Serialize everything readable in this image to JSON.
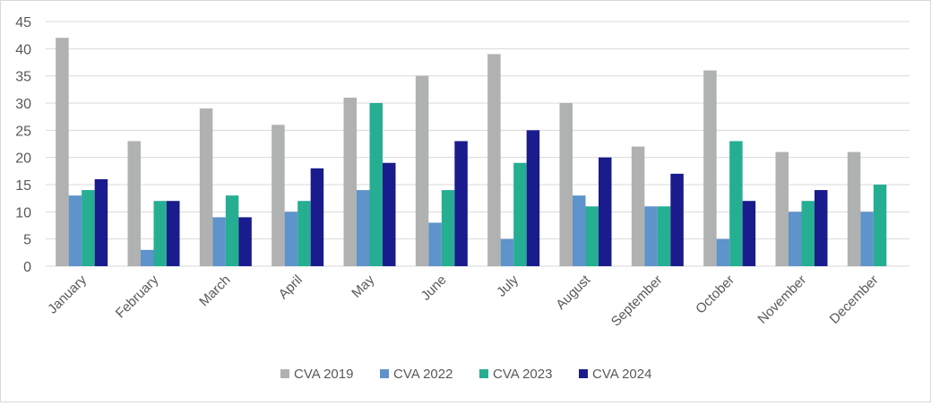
{
  "chart_data": {
    "type": "bar",
    "title": "",
    "xlabel": "",
    "ylabel": "",
    "ylim": [
      0,
      45
    ],
    "yticks": [
      0,
      5,
      10,
      15,
      20,
      25,
      30,
      35,
      40,
      45
    ],
    "grid": true,
    "legend_position": "bottom",
    "categories": [
      "January",
      "February",
      "March",
      "April",
      "May",
      "June",
      "July",
      "August",
      "September",
      "October",
      "November",
      "December"
    ],
    "series": [
      {
        "name": "CVA 2019",
        "color": "#b0b1b1",
        "values": [
          42,
          23,
          29,
          26,
          31,
          35,
          39,
          30,
          22,
          36,
          21,
          21
        ]
      },
      {
        "name": "CVA 2022",
        "color": "#5e93cb",
        "values": [
          13,
          3,
          9,
          10,
          14,
          8,
          5,
          13,
          11,
          5,
          10,
          10
        ]
      },
      {
        "name": "CVA 2023",
        "color": "#26ae93",
        "values": [
          14,
          12,
          13,
          12,
          30,
          14,
          19,
          11,
          11,
          23,
          12,
          15
        ]
      },
      {
        "name": "CVA 2024",
        "color": "#1a1b8c",
        "values": [
          16,
          12,
          9,
          18,
          19,
          23,
          25,
          20,
          17,
          12,
          14,
          null
        ]
      }
    ]
  }
}
